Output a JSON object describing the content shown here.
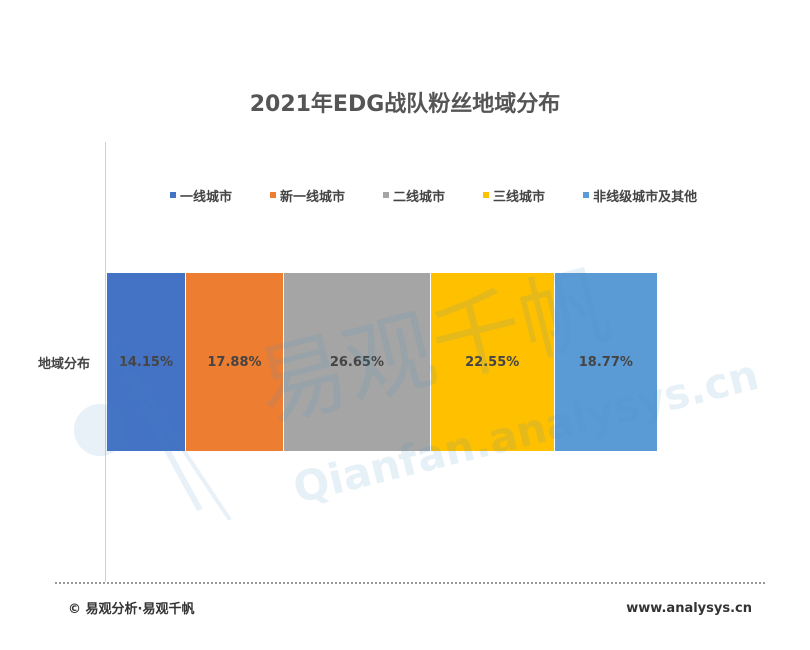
{
  "chart_data": {
    "type": "bar",
    "orientation": "horizontal-stacked-100",
    "title": "2021年EDG战队粉丝地域分布",
    "categories": [
      "地域分布"
    ],
    "series": [
      {
        "name": "一线城市",
        "values": [
          14.15
        ],
        "label": "14.15%",
        "color": "#4472C4"
      },
      {
        "name": "新一线城市",
        "values": [
          17.88
        ],
        "label": "17.88%",
        "color": "#ED7D31"
      },
      {
        "name": "二线城市",
        "values": [
          26.65
        ],
        "label": "26.65%",
        "color": "#A5A5A5"
      },
      {
        "name": "三线城市",
        "values": [
          22.55
        ],
        "label": "22.55%",
        "color": "#FFC000"
      },
      {
        "name": "非线级城市及其他",
        "values": [
          18.77
        ],
        "label": "18.77%",
        "color": "#5B9BD5"
      }
    ],
    "legend_position": "top",
    "grid": false
  },
  "footer": {
    "copyright": "© 易观分析·易观千帆",
    "site": "www.analysys.cn"
  },
  "watermark": {
    "text_cn": "易观千帆",
    "text_en": "Qianfan.analysys.cn"
  }
}
